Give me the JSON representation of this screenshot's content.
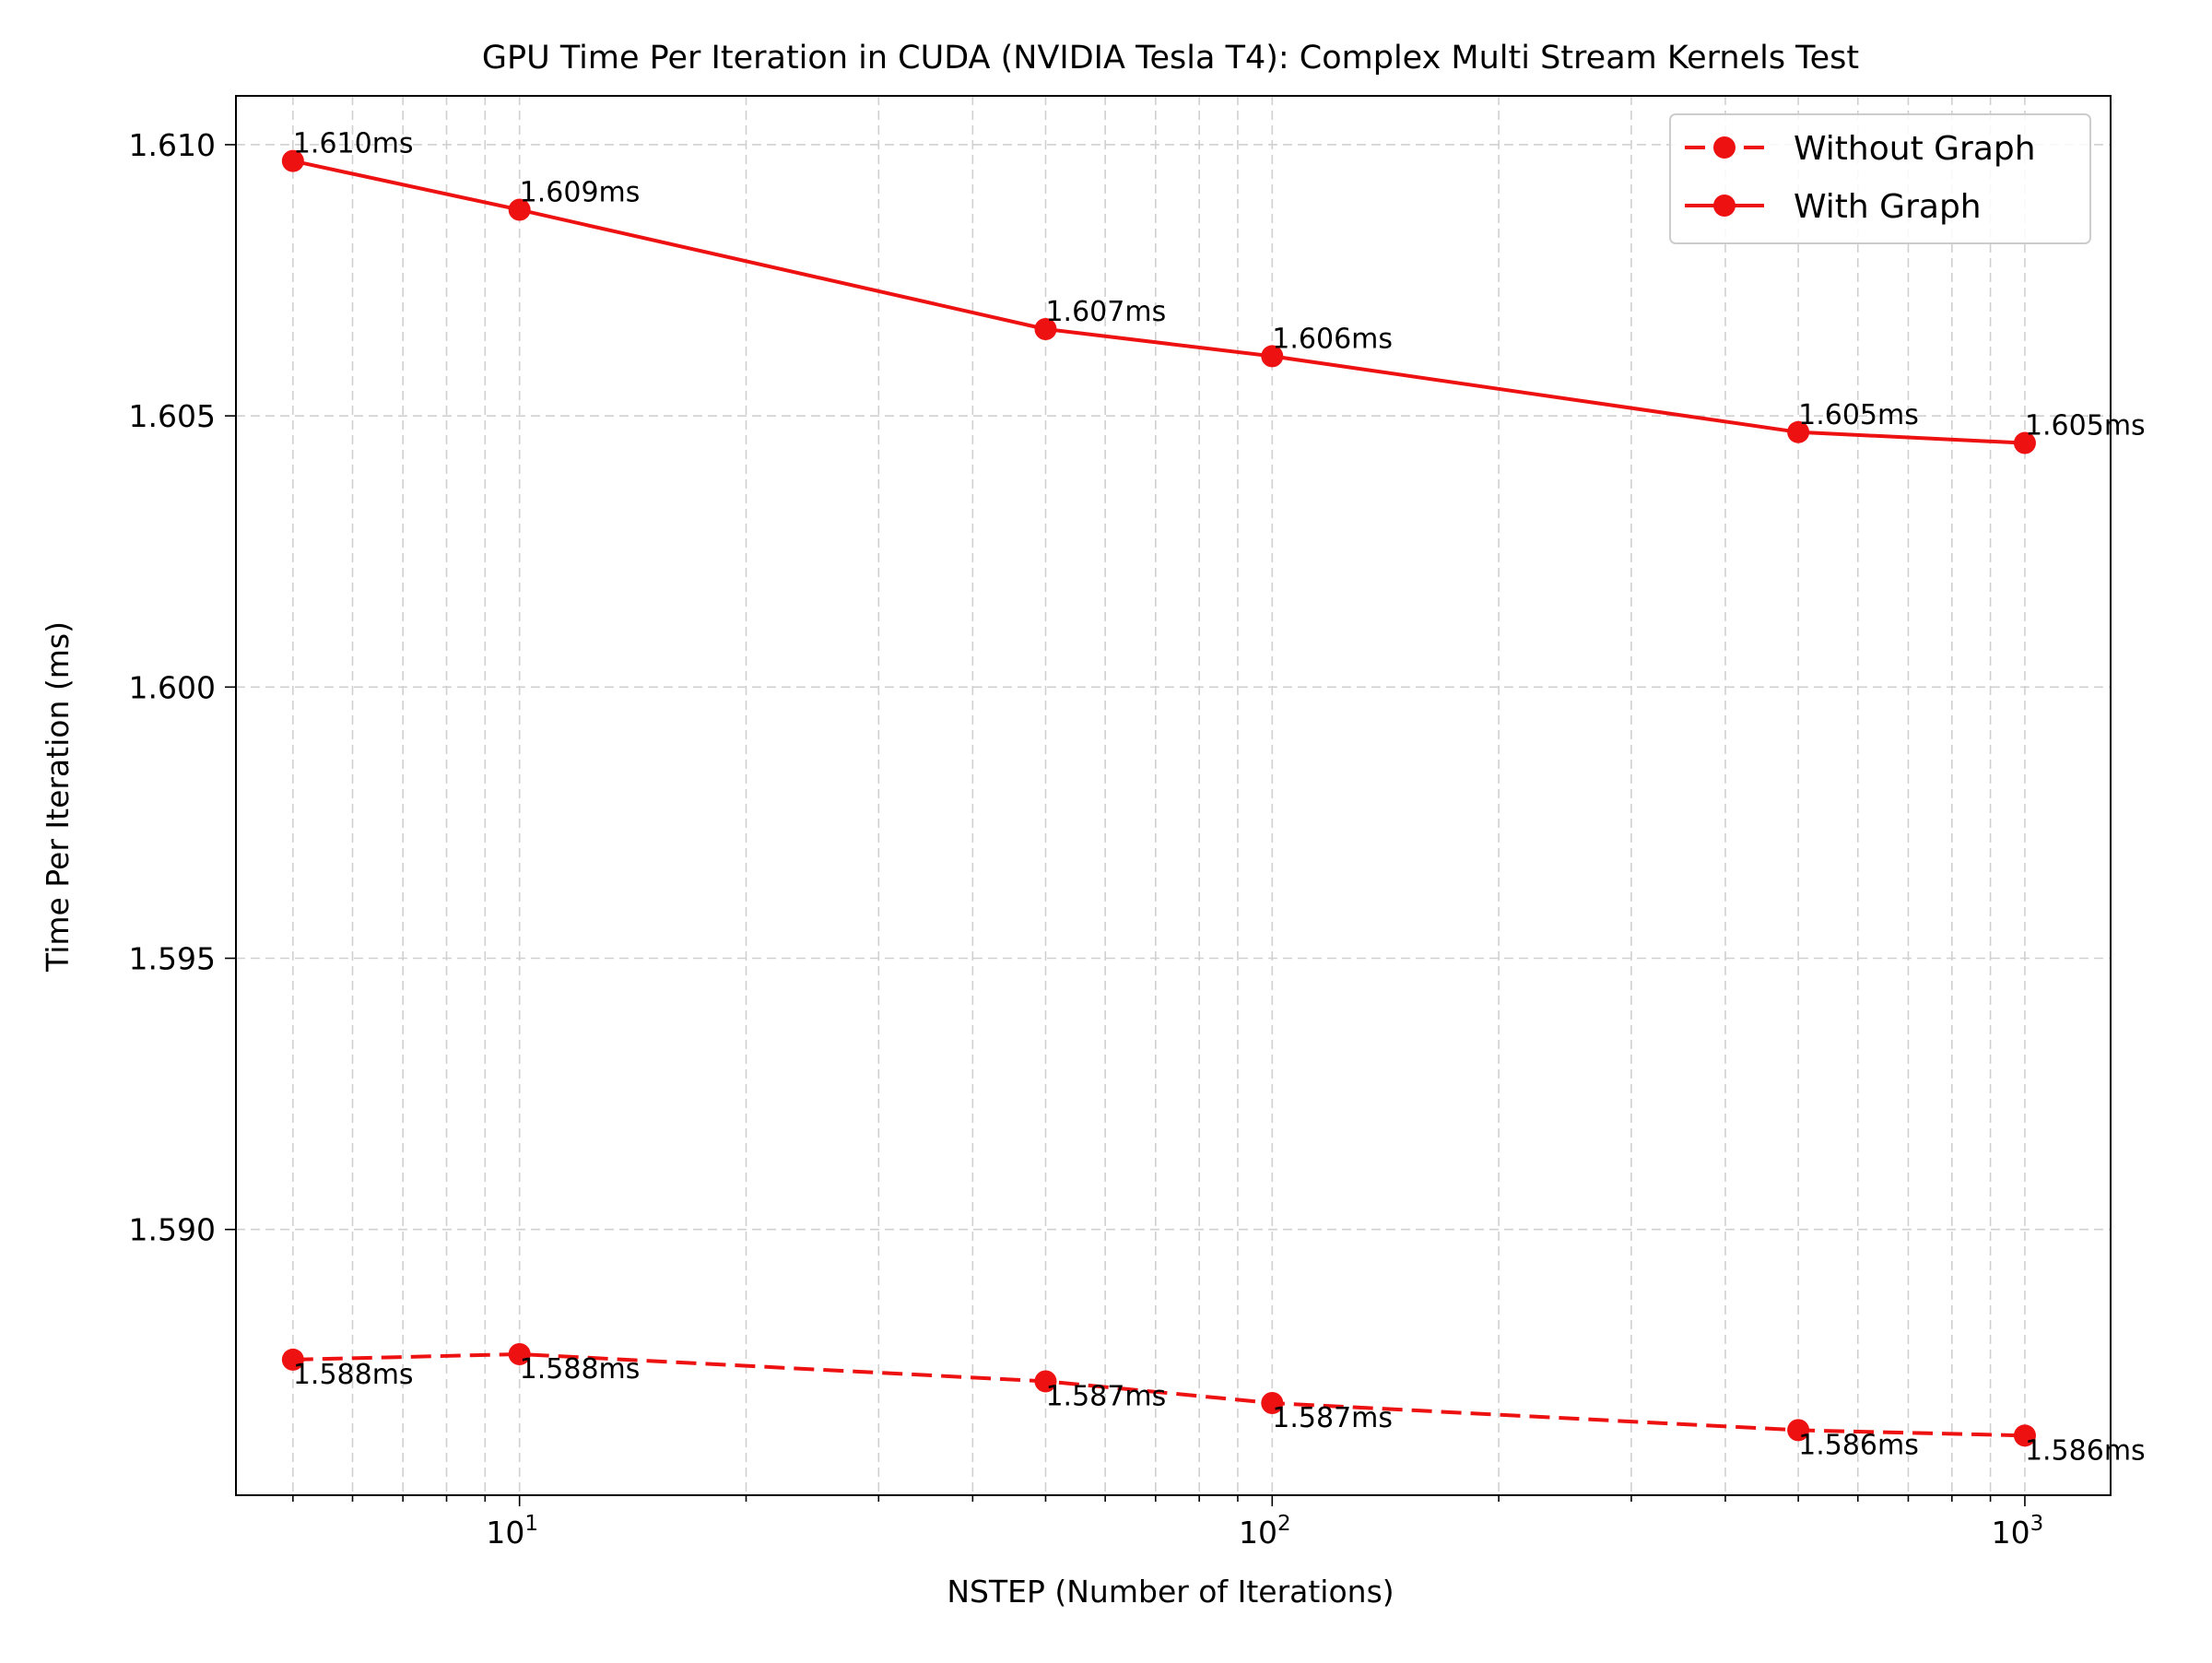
{
  "chart_data": {
    "type": "line",
    "title": "GPU Time Per Iteration in CUDA (NVIDIA Tesla T4): Complex Multi Stream Kernels Test",
    "xlabel": "NSTEP (Number of Iterations)",
    "ylabel": "Time Per Iteration (ms)",
    "x_scale": "log",
    "xlim": [
      4.2,
      1300
    ],
    "ylim": [
      1.5851,
      1.6109
    ],
    "x_major_ticks": [
      10,
      100,
      1000
    ],
    "x_major_tick_labels": [
      {
        "base": "10",
        "exp": "1"
      },
      {
        "base": "10",
        "exp": "2"
      },
      {
        "base": "10",
        "exp": "3"
      }
    ],
    "y_ticks": [
      1.59,
      1.595,
      1.6,
      1.605,
      1.61
    ],
    "y_tick_labels": [
      "1.590",
      "1.595",
      "1.600",
      "1.605",
      "1.610"
    ],
    "grid": true,
    "legend_position": "top-right",
    "x": [
      5,
      10,
      50,
      100,
      500,
      1000
    ],
    "series": [
      {
        "name": "Without Graph",
        "line_style": "dashed",
        "color": "#ee1111",
        "values": [
          1.5876,
          1.5877,
          1.5872,
          1.5868,
          1.5863,
          1.5862
        ],
        "labels": [
          "1.588ms",
          "1.588ms",
          "1.587ms",
          "1.587ms",
          "1.586ms",
          "1.586ms"
        ],
        "label_position": "below"
      },
      {
        "name": "With Graph",
        "line_style": "solid",
        "color": "#ee1111",
        "values": [
          1.6097,
          1.6088,
          1.6066,
          1.6061,
          1.6047,
          1.6045
        ],
        "labels": [
          "1.610ms",
          "1.609ms",
          "1.607ms",
          "1.606ms",
          "1.605ms",
          "1.605ms"
        ],
        "label_position": "above"
      }
    ]
  }
}
